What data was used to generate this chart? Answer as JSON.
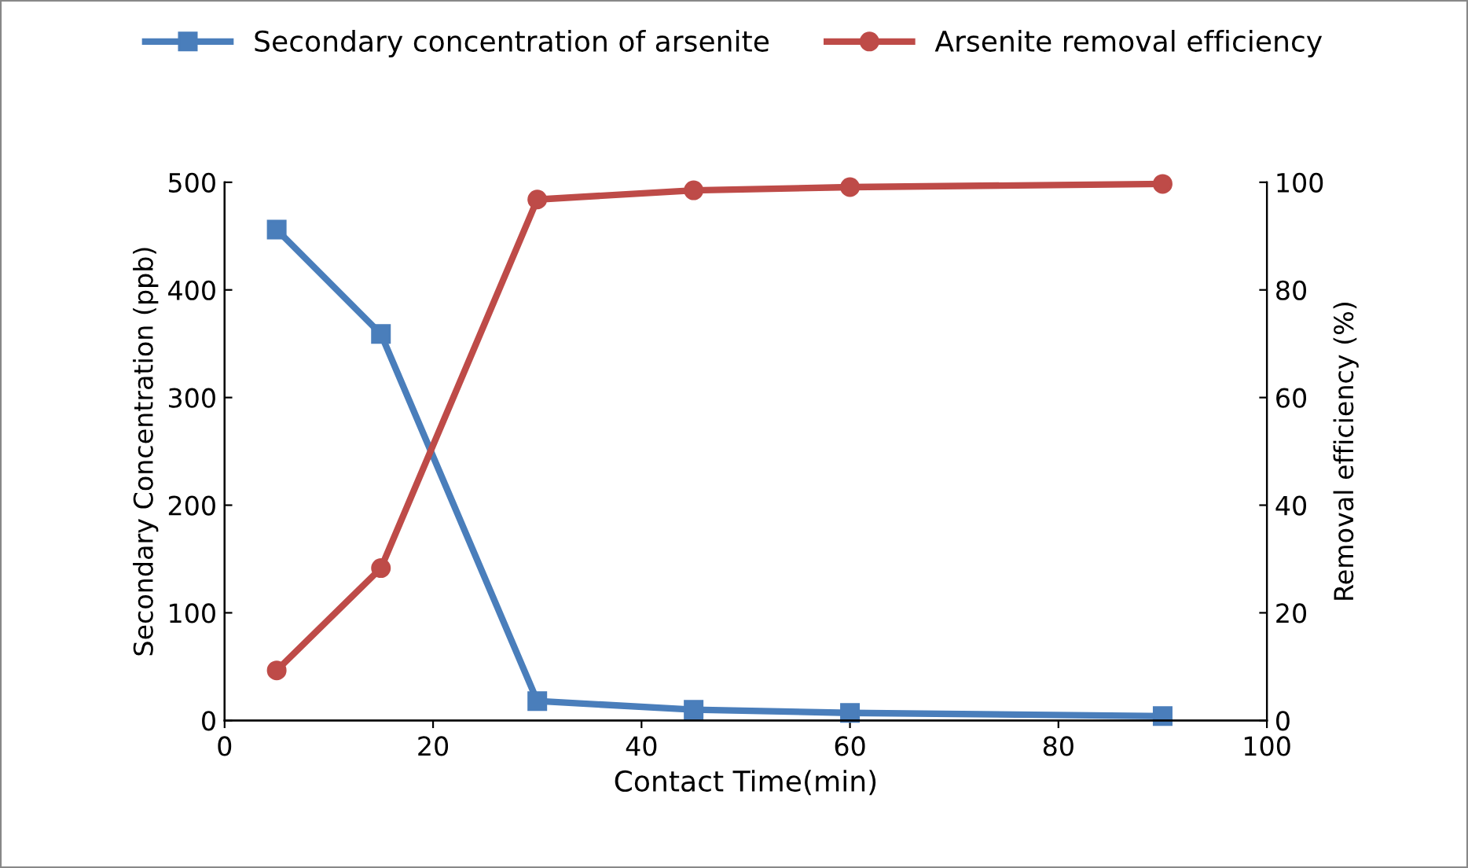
{
  "chart_data": {
    "type": "line",
    "xlabel": "Contact Time(min)",
    "ylabel": "Secondary Concentration (ppb)",
    "y2label": "Removal efficiency (%)",
    "x": [
      5,
      15,
      30,
      45,
      60,
      90
    ],
    "series": [
      {
        "name": "Secondary concentration of arsenite",
        "color": "#4a7ebb",
        "marker": "square",
        "values": [
          456,
          359,
          18,
          10,
          7,
          4
        ]
      },
      {
        "name": "Arsenite removal efficiency",
        "color": "#be4b48",
        "marker": "circle",
        "axis": "y2",
        "values": [
          9.3,
          28.3,
          96.8,
          98.5,
          99.1,
          99.7
        ]
      }
    ],
    "xlim": [
      0,
      100
    ],
    "xticks": [
      0,
      20,
      40,
      60,
      80,
      100
    ],
    "ylim": [
      0,
      500
    ],
    "yticks": [
      0,
      100,
      200,
      300,
      400,
      500
    ],
    "y2lim": [
      0,
      100
    ],
    "y2ticks": [
      0,
      20,
      40,
      60,
      80,
      100
    ],
    "grid": false,
    "legend": "top",
    "line_style": "solid"
  }
}
